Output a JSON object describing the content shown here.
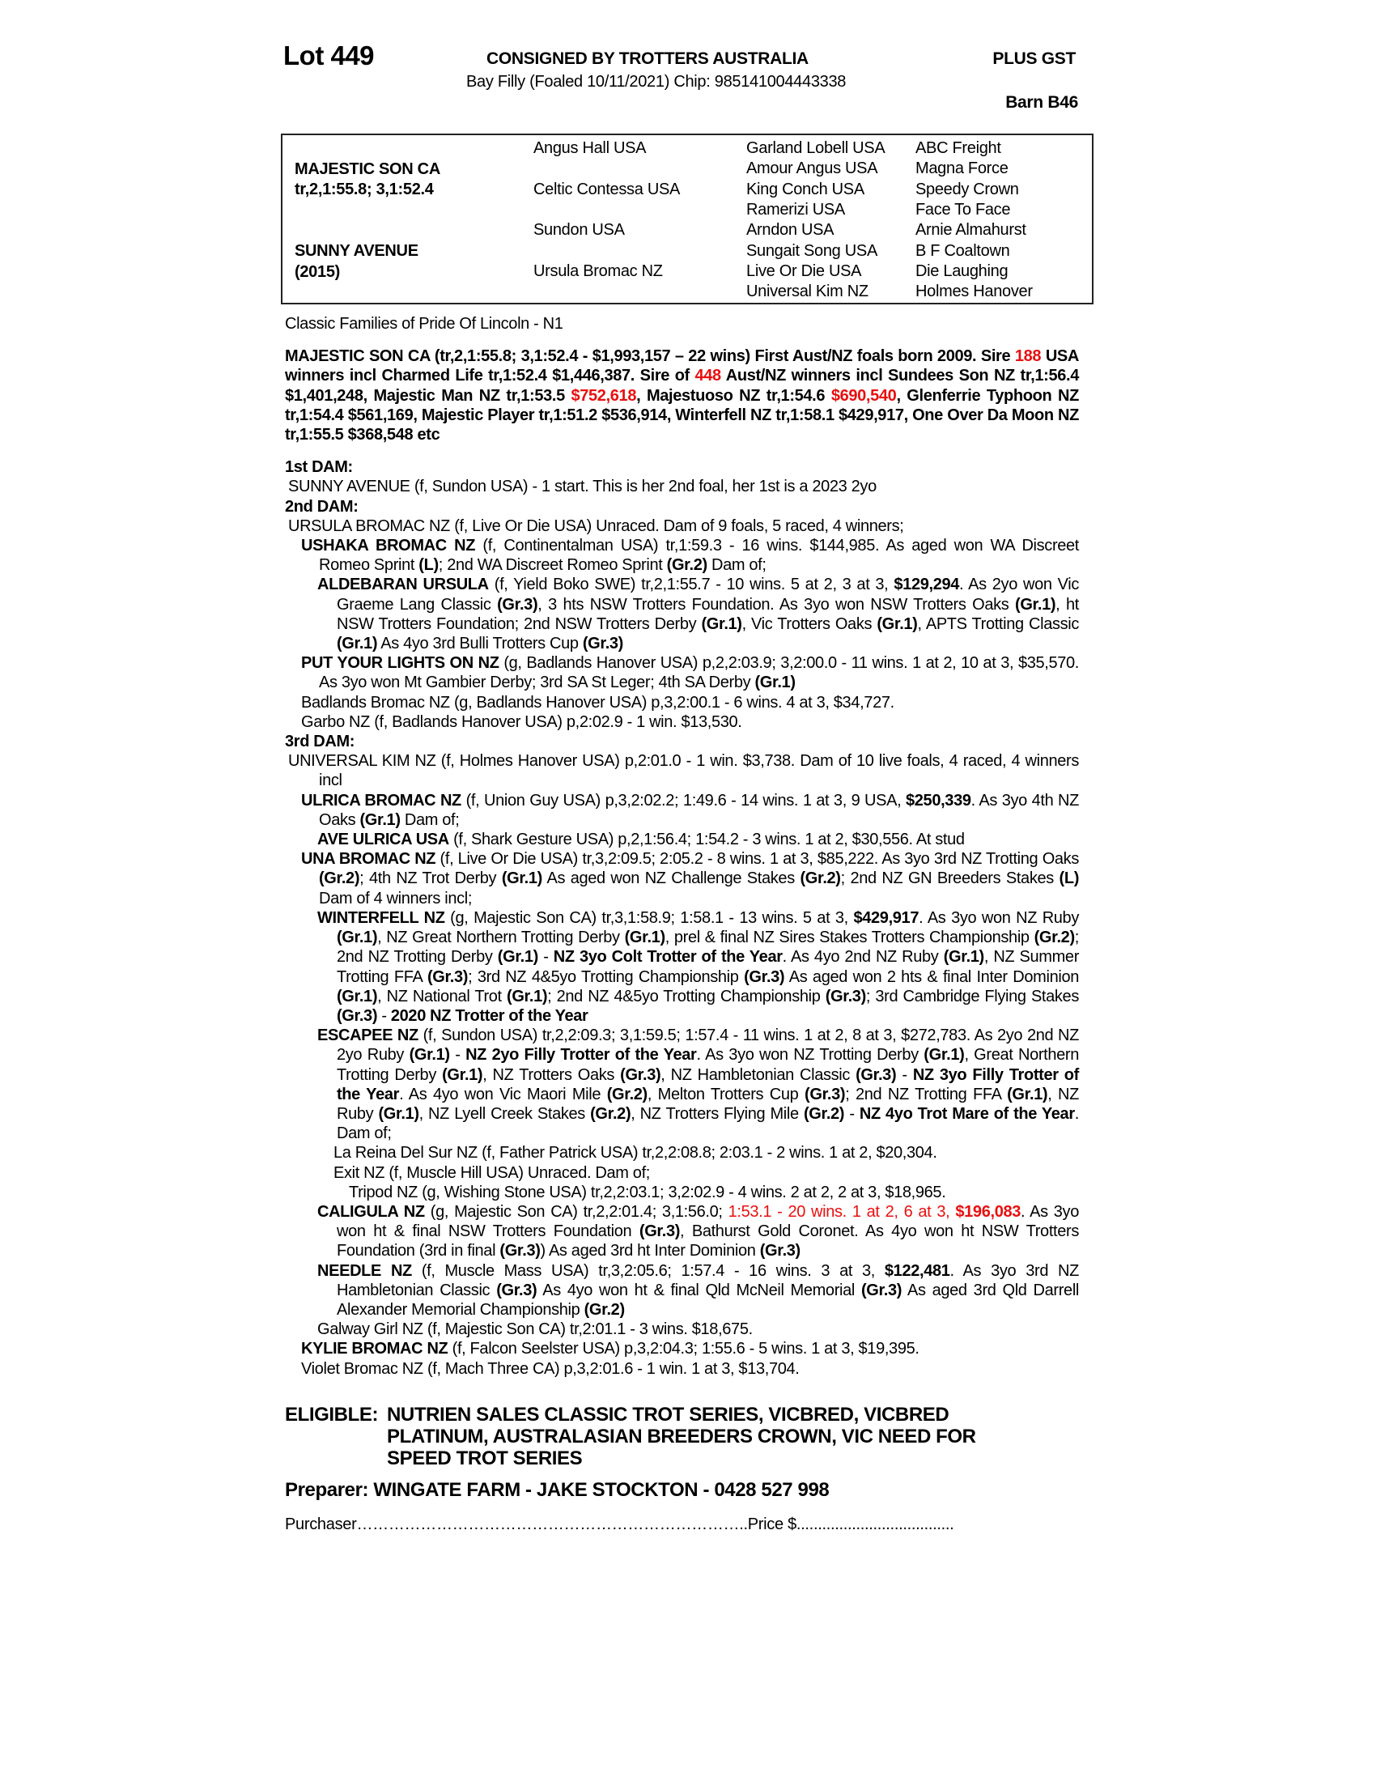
{
  "header": {
    "lot": "Lot 449",
    "consigned": "CONSIGNED BY TROTTERS AUSTRALIA",
    "gst": "PLUS GST",
    "description": "Bay Filly (Foaled 10/11/2021) Chip: 985141004443338",
    "barn": "Barn B46"
  },
  "pedigree": {
    "sire_name": "MAJESTIC SON CA",
    "sire_record": "tr,2,1:55.8; 3,1:52.4",
    "dam_name": "SUNNY AVENUE",
    "dam_year": "(2015)",
    "gen2": [
      "Angus Hall USA",
      "Celtic Contessa USA",
      "Sundon USA",
      "Ursula Bromac NZ"
    ],
    "gen3": [
      "Garland Lobell USA",
      "Amour Angus USA",
      "King Conch USA",
      "Ramerizi USA",
      "Arndon USA",
      "Sungait Song USA",
      "Live Or Die USA",
      "Universal Kim NZ"
    ],
    "gen4": [
      "ABC Freight",
      "Magna Force",
      "Speedy Crown",
      "Face To Face",
      "Arnie Almahurst",
      "B F Coaltown",
      "Die Laughing",
      "Holmes Hanover"
    ]
  },
  "family": "Classic Families of Pride Of Lincoln - N1",
  "sire_para": [
    {
      "t": "MAJESTIC SON CA (tr,2,1:55.8; 3,1:52.4 - $1,993,157 – 22 wins) First Aust/NZ foals born 2009. Sire ",
      "s": "b"
    },
    {
      "t": "188",
      "s": "rb"
    },
    {
      "t": " USA winners incl Charmed Life tr,1:52.4 $1,446,387. Sire of ",
      "s": "b"
    },
    {
      "t": "448",
      "s": "rb"
    },
    {
      "t": " Aust/NZ winners incl Sundees Son NZ tr,1:56.4 $1,401,248, Majestic Man NZ tr,1:53.5 ",
      "s": "b"
    },
    {
      "t": "$752,618",
      "s": "rb"
    },
    {
      "t": ", Majestuoso NZ tr,1:54.6 ",
      "s": "b"
    },
    {
      "t": "$690,540",
      "s": "rb"
    },
    {
      "t": ", Glenferrie Typhoon NZ tr,1:54.4 $561,169, Majestic Player tr,1:51.2 $536,914, Winterfell NZ tr,1:58.1 $429,917, One Over Da Moon NZ tr,1:55.5 $368,548 etc",
      "s": "b"
    }
  ],
  "dams": [
    {
      "heading": "1st DAM:",
      "entries": [
        {
          "level": 0,
          "segs": [
            {
              "t": "SUNNY AVENUE (f, Sundon USA) - 1 start. This is her 2nd foal, her 1st is a 2023 2yo",
              "s": ""
            }
          ]
        }
      ]
    },
    {
      "heading": "2nd DAM:",
      "entries": [
        {
          "level": 0,
          "segs": [
            {
              "t": "URSULA BROMAC NZ (f, Live Or Die USA) Unraced. Dam of 9 foals, 5 raced, 4 winners;",
              "s": ""
            }
          ]
        },
        {
          "level": 1,
          "segs": [
            {
              "t": "USHAKA BROMAC NZ",
              "s": "b"
            },
            {
              "t": " (f, Continentalman USA) tr,1:59.3 - 16 wins. $144,985. As aged won WA Discreet Romeo Sprint ",
              "s": ""
            },
            {
              "t": "(L)",
              "s": "b"
            },
            {
              "t": "; 2nd WA Discreet Romeo Sprint ",
              "s": ""
            },
            {
              "t": "(Gr.2)",
              "s": "b"
            },
            {
              "t": " Dam of;",
              "s": ""
            }
          ]
        },
        {
          "level": 2,
          "segs": [
            {
              "t": "ALDEBARAN URSULA",
              "s": "b"
            },
            {
              "t": " (f, Yield Boko SWE) tr,2,1:55.7 - 10 wins. 5 at 2, 3 at 3, ",
              "s": ""
            },
            {
              "t": "$129,294",
              "s": "b"
            },
            {
              "t": ". As 2yo won Vic Graeme Lang Classic ",
              "s": ""
            },
            {
              "t": "(Gr.3)",
              "s": "b"
            },
            {
              "t": ", 3 hts NSW Trotters Foundation. As 3yo won NSW Trotters Oaks ",
              "s": ""
            },
            {
              "t": "(Gr.1)",
              "s": "b"
            },
            {
              "t": ", ht NSW Trotters Foundation; 2nd NSW Trotters Derby ",
              "s": ""
            },
            {
              "t": "(Gr.1)",
              "s": "b"
            },
            {
              "t": ", Vic Trotters Oaks ",
              "s": ""
            },
            {
              "t": "(Gr.1)",
              "s": "b"
            },
            {
              "t": ", APTS Trotting Classic ",
              "s": ""
            },
            {
              "t": "(Gr.1)",
              "s": "b"
            },
            {
              "t": " As 4yo 3rd Bulli Trotters Cup ",
              "s": ""
            },
            {
              "t": "(Gr.3)",
              "s": "b"
            }
          ]
        },
        {
          "level": 1,
          "segs": [
            {
              "t": "PUT YOUR LIGHTS ON NZ",
              "s": "b"
            },
            {
              "t": " (g, Badlands Hanover USA) p,2,2:03.9; 3,2:00.0 - 11 wins. 1 at 2, 10 at 3, $35,570. As 3yo won Mt Gambier Derby; 3rd SA St Leger; 4th SA Derby ",
              "s": ""
            },
            {
              "t": "(Gr.1)",
              "s": "b"
            }
          ]
        },
        {
          "level": 1,
          "segs": [
            {
              "t": "Badlands Bromac NZ (g, Badlands Hanover USA) p,3,2:00.1 - 6 wins. 4 at 3, $34,727.",
              "s": ""
            }
          ]
        },
        {
          "level": 1,
          "segs": [
            {
              "t": "Garbo NZ (f, Badlands Hanover USA) p,2:02.9 - 1 win. $13,530.",
              "s": ""
            }
          ]
        }
      ]
    },
    {
      "heading": "3rd DAM:",
      "entries": [
        {
          "level": 0,
          "segs": [
            {
              "t": "UNIVERSAL KIM NZ (f, Holmes Hanover USA) p,2:01.0 - 1 win. $3,738. Dam of 10 live foals, 4 raced, 4 winners incl",
              "s": ""
            }
          ]
        },
        {
          "level": 1,
          "segs": [
            {
              "t": "ULRICA BROMAC NZ",
              "s": "b"
            },
            {
              "t": " (f, Union Guy USA) p,3,2:02.2; 1:49.6 - 14 wins. 1 at 3, 9 USA, ",
              "s": ""
            },
            {
              "t": "$250,339",
              "s": "b"
            },
            {
              "t": ". As 3yo 4th NZ Oaks ",
              "s": ""
            },
            {
              "t": "(Gr.1)",
              "s": "b"
            },
            {
              "t": " Dam of;",
              "s": ""
            }
          ]
        },
        {
          "level": 2,
          "segs": [
            {
              "t": "AVE ULRICA USA",
              "s": "b"
            },
            {
              "t": " (f, Shark Gesture USA) p,2,1:56.4; 1:54.2 - 3 wins. 1 at 2, $30,556. At stud",
              "s": ""
            }
          ]
        },
        {
          "level": 1,
          "segs": [
            {
              "t": "UNA BROMAC NZ",
              "s": "b"
            },
            {
              "t": " (f, Live Or Die USA) tr,3,2:09.5; 2:05.2 - 8 wins. 1 at 3, $85,222. As 3yo 3rd NZ Trotting Oaks ",
              "s": ""
            },
            {
              "t": "(Gr.2)",
              "s": "b"
            },
            {
              "t": "; 4th NZ Trot Derby ",
              "s": ""
            },
            {
              "t": "(Gr.1)",
              "s": "b"
            },
            {
              "t": " As aged won NZ Challenge Stakes ",
              "s": ""
            },
            {
              "t": "(Gr.2)",
              "s": "b"
            },
            {
              "t": "; 2nd NZ GN Breeders Stakes ",
              "s": ""
            },
            {
              "t": "(L)",
              "s": "b"
            },
            {
              "t": " Dam of 4 winners incl;",
              "s": ""
            }
          ]
        },
        {
          "level": 2,
          "segs": [
            {
              "t": "WINTERFELL NZ",
              "s": "b"
            },
            {
              "t": " (g, Majestic Son CA) tr,3,1:58.9; 1:58.1 - 13 wins. 5 at 3, ",
              "s": ""
            },
            {
              "t": "$429,917",
              "s": "b"
            },
            {
              "t": ". As 3yo won NZ Ruby ",
              "s": ""
            },
            {
              "t": "(Gr.1)",
              "s": "b"
            },
            {
              "t": ", NZ Great Northern Trotting Derby ",
              "s": ""
            },
            {
              "t": "(Gr.1)",
              "s": "b"
            },
            {
              "t": ", prel & final NZ Sires Stakes Trotters Championship ",
              "s": ""
            },
            {
              "t": "(Gr.2)",
              "s": "b"
            },
            {
              "t": "; 2nd NZ Trotting Derby ",
              "s": ""
            },
            {
              "t": "(Gr.1)",
              "s": "b"
            },
            {
              "t": " - ",
              "s": ""
            },
            {
              "t": "NZ 3yo Colt Trotter of the Year",
              "s": "b"
            },
            {
              "t": ". As 4yo 2nd NZ Ruby ",
              "s": ""
            },
            {
              "t": "(Gr.1)",
              "s": "b"
            },
            {
              "t": ", NZ Summer Trotting FFA ",
              "s": ""
            },
            {
              "t": "(Gr.3)",
              "s": "b"
            },
            {
              "t": "; 3rd NZ 4&5yo Trotting Championship ",
              "s": ""
            },
            {
              "t": "(Gr.3)",
              "s": "b"
            },
            {
              "t": " As aged won 2 hts & final Inter Dominion ",
              "s": ""
            },
            {
              "t": "(Gr.1)",
              "s": "b"
            },
            {
              "t": ", NZ National Trot ",
              "s": ""
            },
            {
              "t": "(Gr.1)",
              "s": "b"
            },
            {
              "t": "; 2nd NZ 4&5yo Trotting Championship ",
              "s": ""
            },
            {
              "t": "(Gr.3)",
              "s": "b"
            },
            {
              "t": "; 3rd Cambridge Flying Stakes ",
              "s": ""
            },
            {
              "t": "(Gr.3)",
              "s": "b"
            },
            {
              "t": " - ",
              "s": ""
            },
            {
              "t": "2020 NZ Trotter of the Year",
              "s": "b"
            }
          ]
        },
        {
          "level": 2,
          "segs": [
            {
              "t": "ESCAPEE NZ",
              "s": "b"
            },
            {
              "t": " (f, Sundon USA) tr,2,2:09.3; 3,1:59.5; 1:57.4 - 11 wins. 1 at 2, 8 at 3, $272,783. As 2yo 2nd NZ 2yo Ruby ",
              "s": ""
            },
            {
              "t": "(Gr.1)",
              "s": "b"
            },
            {
              "t": " - ",
              "s": ""
            },
            {
              "t": "NZ 2yo Filly Trotter of the Year",
              "s": "b"
            },
            {
              "t": ". As 3yo won NZ Trotting Derby ",
              "s": ""
            },
            {
              "t": "(Gr.1)",
              "s": "b"
            },
            {
              "t": ", Great Northern Trotting Derby ",
              "s": ""
            },
            {
              "t": "(Gr.1)",
              "s": "b"
            },
            {
              "t": ", NZ Trotters Oaks ",
              "s": ""
            },
            {
              "t": "(Gr.3)",
              "s": "b"
            },
            {
              "t": ", NZ Hambletonian Classic ",
              "s": ""
            },
            {
              "t": "(Gr.3)",
              "s": "b"
            },
            {
              "t": " - ",
              "s": ""
            },
            {
              "t": "NZ 3yo Filly Trotter of the Year",
              "s": "b"
            },
            {
              "t": ". As 4yo won Vic Maori Mile ",
              "s": ""
            },
            {
              "t": "(Gr.2)",
              "s": "b"
            },
            {
              "t": ", Melton Trotters Cup ",
              "s": ""
            },
            {
              "t": "(Gr.3)",
              "s": "b"
            },
            {
              "t": "; 2nd NZ Trotting FFA ",
              "s": ""
            },
            {
              "t": "(Gr.1)",
              "s": "b"
            },
            {
              "t": ", NZ Ruby ",
              "s": ""
            },
            {
              "t": "(Gr.1)",
              "s": "b"
            },
            {
              "t": ", NZ Lyell Creek Stakes ",
              "s": ""
            },
            {
              "t": "(Gr.2)",
              "s": "b"
            },
            {
              "t": ", NZ Trotters Flying Mile ",
              "s": ""
            },
            {
              "t": "(Gr.2)",
              "s": "b"
            },
            {
              "t": " - ",
              "s": ""
            },
            {
              "t": "NZ 4yo Trot Mare of the Year",
              "s": "b"
            },
            {
              "t": ". Dam of;",
              "s": ""
            }
          ]
        },
        {
          "level": 3,
          "segs": [
            {
              "t": "La Reina Del Sur NZ (f, Father Patrick USA) tr,2,2:08.8; 2:03.1 - 2 wins. 1 at 2, $20,304.",
              "s": ""
            }
          ]
        },
        {
          "level": 3,
          "segs": [
            {
              "t": "Exit NZ (f, Muscle Hill USA) Unraced. Dam of;",
              "s": ""
            }
          ]
        },
        {
          "level": 4,
          "segs": [
            {
              "t": "Tripod NZ (g, Wishing Stone USA) tr,2,2:03.1; 3,2:02.9 - 4 wins. 2 at 2, 2 at 3, $18,965.",
              "s": ""
            }
          ]
        },
        {
          "level": 2,
          "segs": [
            {
              "t": "CALIGULA NZ",
              "s": "b"
            },
            {
              "t": " (g, Majestic Son CA) tr,2,2:01.4; 3,1:56.0; ",
              "s": ""
            },
            {
              "t": "1:53.1 - 20 wins. 1 at 2, 6 at 3, ",
              "s": "r"
            },
            {
              "t": "$196,083",
              "s": "rb"
            },
            {
              "t": ". As 3yo won ht & final NSW Trotters Foundation ",
              "s": ""
            },
            {
              "t": "(Gr.3)",
              "s": "b"
            },
            {
              "t": ", Bathurst Gold Coronet. As 4yo won ht NSW Trotters Foundation (3rd in final ",
              "s": ""
            },
            {
              "t": "(Gr.3)",
              "s": "b"
            },
            {
              "t": ") As aged 3rd ht Inter Dominion ",
              "s": ""
            },
            {
              "t": "(Gr.3)",
              "s": "b"
            }
          ]
        },
        {
          "level": 2,
          "segs": [
            {
              "t": "NEEDLE NZ",
              "s": "b"
            },
            {
              "t": " (f, Muscle Mass USA) tr,3,2:05.6; 1:57.4 - 16 wins. 3 at 3, ",
              "s": ""
            },
            {
              "t": "$122,481",
              "s": "b"
            },
            {
              "t": ". As 3yo 3rd NZ Hambletonian Classic ",
              "s": ""
            },
            {
              "t": "(Gr.3)",
              "s": "b"
            },
            {
              "t": " As 4yo won ht & final Qld McNeil Memorial ",
              "s": ""
            },
            {
              "t": "(Gr.3)",
              "s": "b"
            },
            {
              "t": " As aged 3rd Qld Darrell Alexander Memorial Championship ",
              "s": ""
            },
            {
              "t": "(Gr.2)",
              "s": "b"
            }
          ]
        },
        {
          "level": 2,
          "segs": [
            {
              "t": "Galway Girl NZ (f, Majestic Son CA) tr,2:01.1 - 3 wins. $18,675.",
              "s": ""
            }
          ]
        },
        {
          "level": 1,
          "segs": [
            {
              "t": "KYLIE BROMAC NZ",
              "s": "b"
            },
            {
              "t": " (f, Falcon Seelster USA) p,3,2:04.3; 1:55.6 - 5 wins. 1 at 3, $19,395.",
              "s": ""
            }
          ]
        },
        {
          "level": 1,
          "segs": [
            {
              "t": "Violet Bromac NZ (f, Mach Three CA) p,3,2:01.6 - 1 win. 1 at 3, $13,704.",
              "s": ""
            }
          ]
        }
      ]
    }
  ],
  "eligible": {
    "label": "ELIGIBLE:",
    "text": "NUTRIEN SALES CLASSIC TROT SERIES, VICBRED, VICBRED PLATINUM, AUSTRALASIAN BREEDERS CROWN, VIC NEED FOR SPEED TROT SERIES"
  },
  "preparer": "Preparer: WINGATE FARM - JAKE STOCKTON - 0428 527 998",
  "purchaser": "Purchaser………………………………………………………………..Price $.....................................",
  "colors": {
    "highlight": "#e8100f",
    "text": "#000000"
  }
}
